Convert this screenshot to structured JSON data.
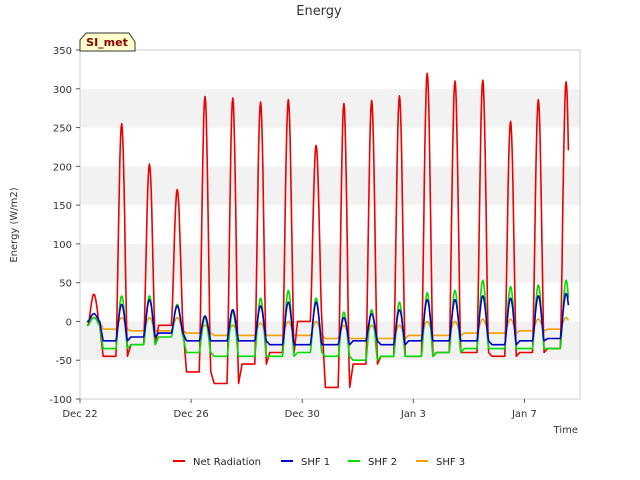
{
  "chart_data": {
    "type": "line",
    "title": "Energy",
    "xlabel": "Time",
    "ylabel": "Energy (W/m2)",
    "badge": "SI_met",
    "ylim": [
      -100,
      350
    ],
    "yticks": [
      -100,
      -50,
      0,
      50,
      100,
      150,
      200,
      250,
      300,
      350
    ],
    "xlim": [
      "2021-12-22",
      "2022-01-09"
    ],
    "xticks": [
      {
        "date": "2021-12-22",
        "label": "Dec 22"
      },
      {
        "date": "2021-12-26",
        "label": "Dec 26"
      },
      {
        "date": "2021-12-30",
        "label": "Dec 30"
      },
      {
        "date": "2022-01-03",
        "label": "Jan 3"
      },
      {
        "date": "2022-01-07",
        "label": "Jan 7"
      }
    ],
    "grid": "alternating horizontal bands",
    "legend_position": "bottom-center",
    "x": [
      "2021-12-22",
      "2021-12-23",
      "2021-12-24",
      "2021-12-25",
      "2021-12-26",
      "2021-12-27",
      "2021-12-28",
      "2021-12-29",
      "2021-12-30",
      "2021-12-31",
      "2022-01-01",
      "2022-01-02",
      "2022-01-03",
      "2022-01-04",
      "2022-01-05",
      "2022-01-06",
      "2022-01-07",
      "2022-01-08"
    ],
    "series": [
      {
        "name": "Net Radiation",
        "color": "#ee0000",
        "peak": [
          35,
          255,
          203,
          170,
          290,
          288,
          283,
          286,
          227,
          281,
          285,
          291,
          320,
          310,
          311,
          258,
          286,
          309
        ],
        "night": [
          -5,
          -45,
          -30,
          -5,
          -65,
          -80,
          -55,
          -40,
          0,
          -85,
          -55,
          -45,
          -45,
          -40,
          -40,
          -45,
          -40,
          -35
        ]
      },
      {
        "name": "SHF 1",
        "color": "#0000cc",
        "peak": [
          10,
          22,
          28,
          20,
          7,
          15,
          20,
          25,
          25,
          5,
          10,
          15,
          28,
          28,
          33,
          30,
          33,
          36
        ],
        "night": [
          0,
          -25,
          -20,
          -15,
          -25,
          -25,
          -25,
          -30,
          -30,
          -30,
          -25,
          -30,
          -25,
          -25,
          -25,
          -30,
          -25,
          -22
        ]
      },
      {
        "name": "SHF 2",
        "color": "#00dd00",
        "peak": [
          5,
          33,
          33,
          22,
          5,
          13,
          30,
          40,
          30,
          12,
          15,
          25,
          37,
          40,
          53,
          45,
          47,
          53
        ],
        "night": [
          -5,
          -35,
          -30,
          -20,
          -40,
          -45,
          -45,
          -45,
          -40,
          -45,
          -50,
          -45,
          -45,
          -40,
          -35,
          -35,
          -35,
          -35
        ]
      },
      {
        "name": "SHF 3",
        "color": "#f0a000",
        "peak": [
          5,
          5,
          5,
          5,
          -5,
          -5,
          -2,
          0,
          0,
          -5,
          -5,
          -5,
          0,
          0,
          3,
          3,
          3,
          5
        ],
        "night": [
          0,
          -10,
          -12,
          -12,
          -15,
          -18,
          -18,
          -18,
          -18,
          -22,
          -22,
          -22,
          -18,
          -18,
          -15,
          -15,
          -12,
          -10
        ]
      }
    ]
  }
}
